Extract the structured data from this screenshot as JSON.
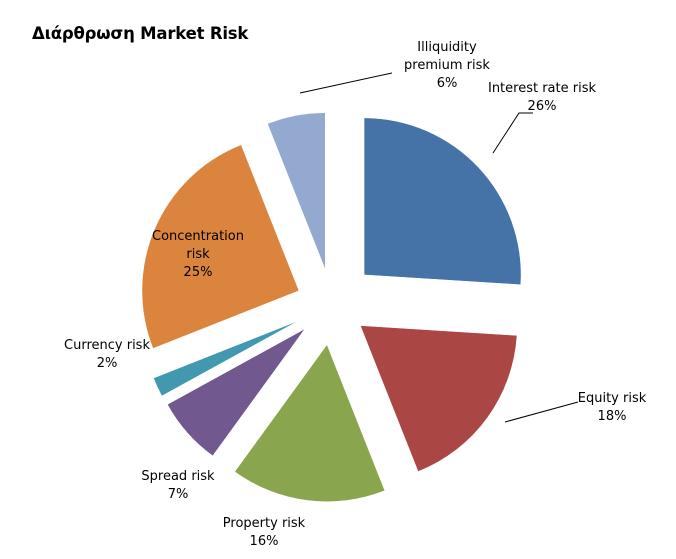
{
  "chart_data": {
    "type": "pie",
    "title": "Διάρθρωση Market Risk",
    "categories": [
      "Interest rate risk",
      "Equity risk",
      "Property risk",
      "Spread risk",
      "Currency risk",
      "Concentration risk",
      "Illiquidity premium risk"
    ],
    "values": [
      26,
      18,
      16,
      7,
      2,
      25,
      6
    ],
    "value_labels": [
      "26%",
      "18%",
      "16%",
      "7%",
      "2%",
      "25%",
      "6%"
    ],
    "label_lines": [
      [
        "Interest rate risk"
      ],
      [
        "Equity risk"
      ],
      [
        "Property risk"
      ],
      [
        "Spread risk"
      ],
      [
        "Currency risk"
      ],
      [
        "Concentration",
        "risk"
      ],
      [
        "Illiquidity",
        "premium risk"
      ]
    ],
    "colors": [
      "#4572A7",
      "#AA4643",
      "#89A54E",
      "#71588F",
      "#4198AF",
      "#DB843D",
      "#93A9CF"
    ],
    "exploded": true,
    "legend": "none"
  }
}
